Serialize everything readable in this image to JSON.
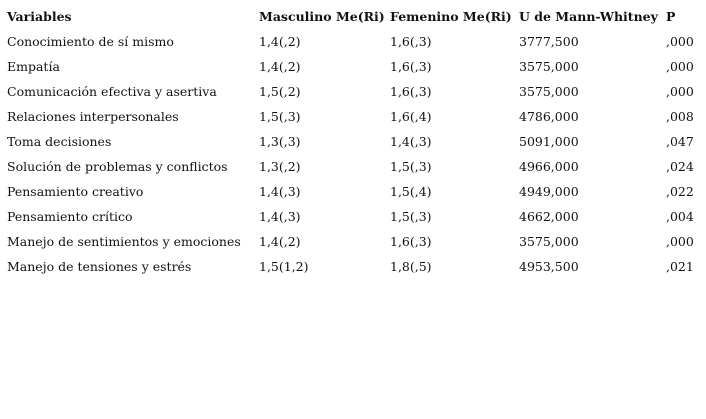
{
  "table": {
    "header": [
      "Variables",
      "Masculino Me(Ri)",
      "Femenino Me(Ri)",
      "U de Mann-Whitney",
      "P"
    ],
    "rows": [
      [
        "Conocimiento de sí mismo",
        "1,4(,2)",
        "1,6(,3)",
        "3777,500",
        ",000"
      ],
      [
        "Empatía",
        "1,4(,2)",
        "1,6(,3)",
        "3575,000",
        ",000"
      ],
      [
        "Comunicación efectiva y asertiva",
        "1,5(,2)",
        "1,6(,3)",
        "3575,000",
        ",000"
      ],
      [
        "Relaciones interpersonales",
        "1,5(,3)",
        "1,6(,4)",
        "4786,000",
        ",008"
      ],
      [
        "Toma decisiones",
        "1,3(,3)",
        "1,4(,3)",
        "5091,000",
        ",047"
      ],
      [
        "Solución de problemas y conflictos",
        "1,3(,2)",
        "1,5(,3)",
        "4966,000",
        ",024"
      ],
      [
        "Pensamiento creativo",
        "1,4(,3)",
        "1,5(,4)",
        "4949,000",
        ",022"
      ],
      [
        "Pensamiento crítico",
        "1,4(,3)",
        "1,5(,3)",
        "4662,000",
        ",004"
      ],
      [
        "Manejo de sentimientos y emociones",
        "1,4(,2)",
        "1,6(,3)",
        "3575,000",
        ",000"
      ],
      [
        "Manejo de tensiones y estrés",
        "1,5(1,2)",
        "1,8(,5)",
        "4953,500",
        ",021"
      ]
    ]
  }
}
